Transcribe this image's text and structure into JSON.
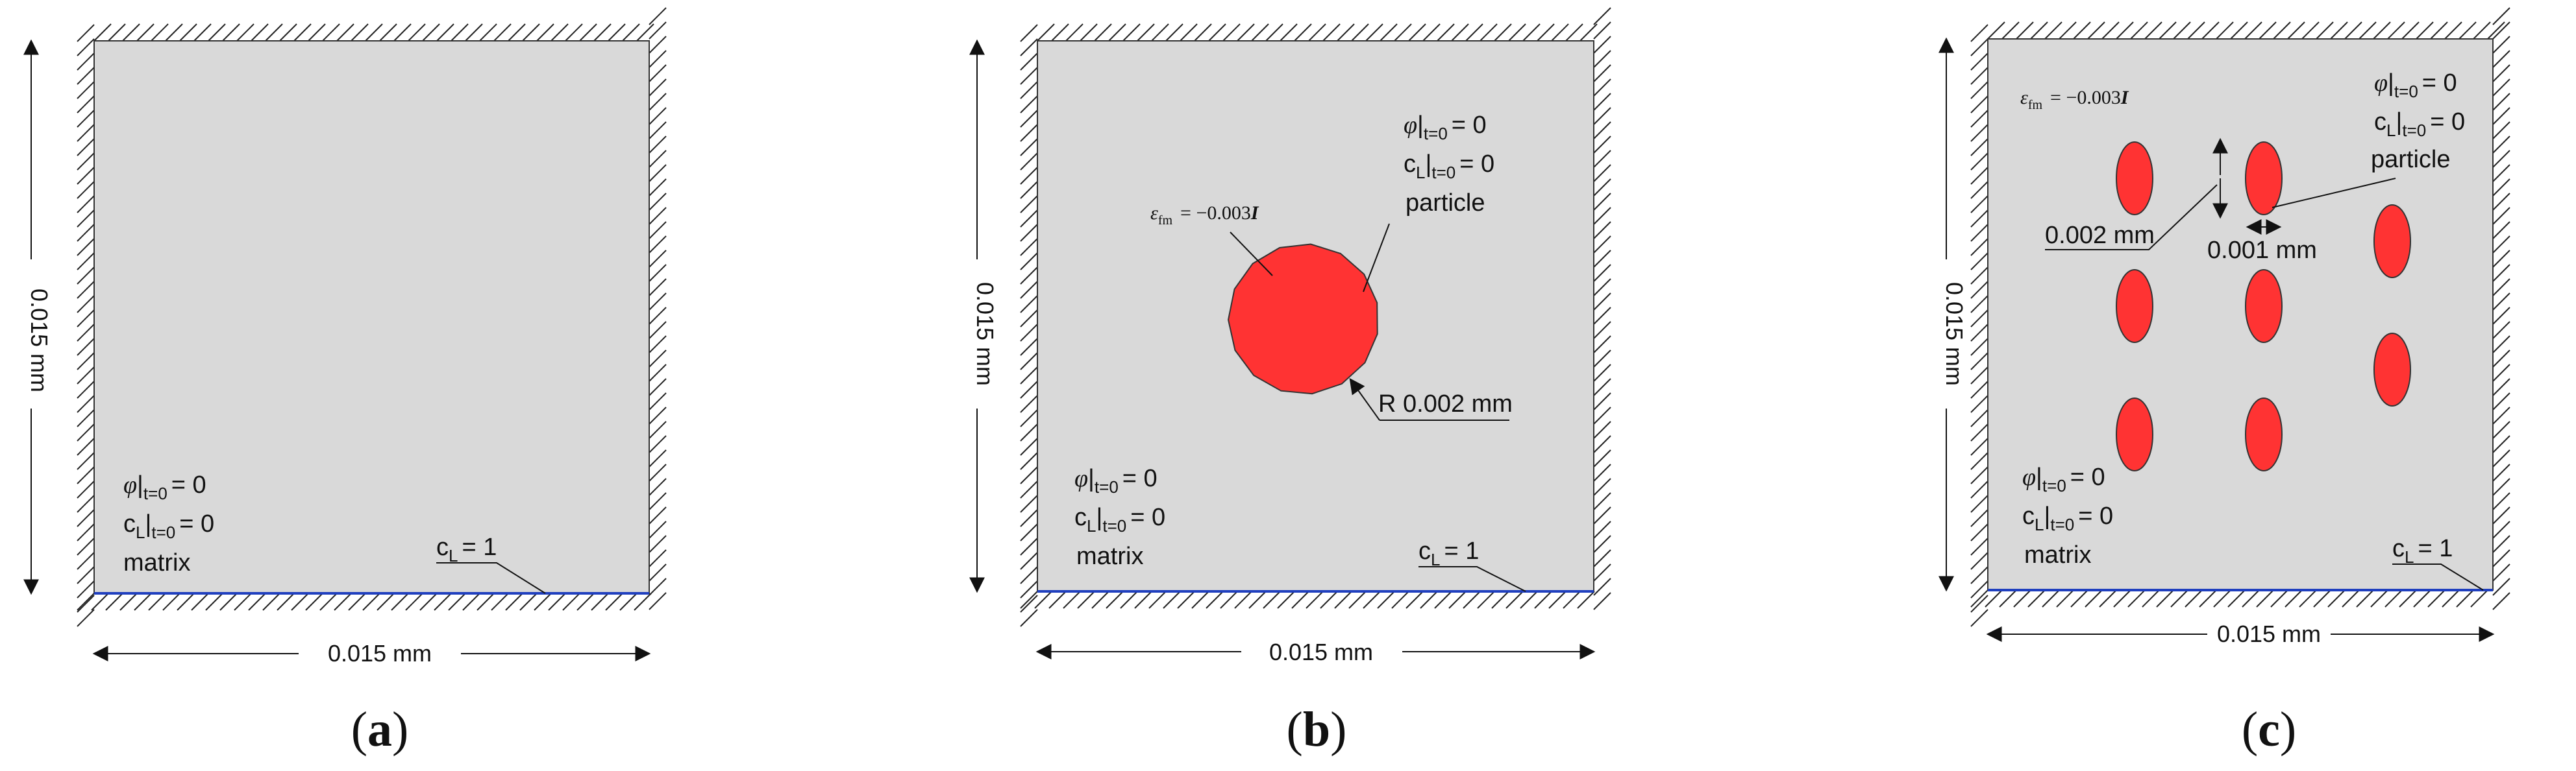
{
  "panels": [
    {
      "caption": "a",
      "width_label": "0.015 mm",
      "height_label": "0.015 mm",
      "matrix_label": "matrix",
      "phi_label": "φ",
      "cl_label": "c",
      "cl_sub": "L",
      "t0_sub": "t=0",
      "equals_zero": "= 0",
      "boundary_label_c": "c",
      "boundary_label_sub": "L",
      "boundary_label_val": "= 1"
    },
    {
      "caption": "b",
      "width_label": "0.015 mm",
      "height_label": "0.015 mm",
      "matrix_label": "matrix",
      "particle_label": "particle",
      "radius_label": "R 0.002 mm",
      "eps_label": "ε",
      "eps_sub": "fm",
      "eps_value": "= −0.003",
      "eps_tensor": "I",
      "phi_label": "φ",
      "cl_label": "c",
      "cl_sub": "L",
      "t0_sub": "t=0",
      "equals_zero": "= 0",
      "boundary_label_c": "c",
      "boundary_label_sub": "L",
      "boundary_label_val": "= 1"
    },
    {
      "caption": "c",
      "width_label": "0.015 mm",
      "height_label": "0.015 mm",
      "matrix_label": "matrix",
      "particle_label": "particle",
      "spacing_label": "0.002 mm",
      "width_small_label": "0.001 mm",
      "eps_label": "ε",
      "eps_sub": "fm",
      "eps_value": "= −0.003",
      "eps_tensor": "I",
      "phi_label": "φ",
      "cl_label": "c",
      "cl_sub": "L",
      "t0_sub": "t=0",
      "equals_zero": "= 0",
      "boundary_label_c": "c",
      "boundary_label_sub": "L",
      "boundary_label_val": "= 1"
    }
  ],
  "colors": {
    "domain_fill": "#d9d9d9",
    "particle_fill": "#ff3333",
    "boundary_line": "#1f3fbf",
    "hatch": "#222222"
  }
}
